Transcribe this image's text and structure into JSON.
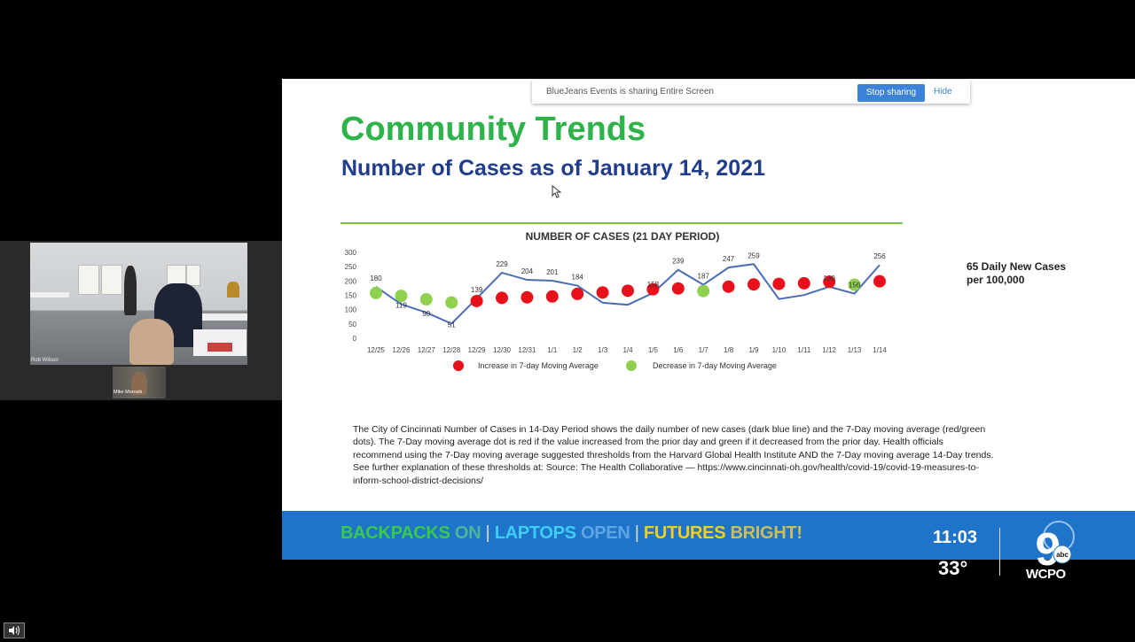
{
  "video": {
    "main_participant_name": "Rob Wilson",
    "thumb_participant_name": "Mike Moroski"
  },
  "share_bar": {
    "message": "BlueJeans Events is sharing Entire Screen",
    "stop_label": "Stop sharing",
    "hide_label": "Hide"
  },
  "slide": {
    "title": "Community Trends",
    "subtitle": "Number of Cases as of January 14, 2021",
    "side_note_line1": "65 Daily New Cases",
    "side_note_line2": "per 100,000",
    "description": "The City of Cincinnati Number of Cases in 14-Day Period shows the daily number of new cases (dark blue line) and the 7-Day moving average (red/green dots).  The 7-Day moving average dot is red if the value increased from the prior day and green if it decreased from the prior day.   Health officials recommend using the 7-Day moving average suggested thresholds from the Harvard Global Health Institute AND the 7-Day moving average 14-Day trends.    See further explanation of these thresholds at: Source: The Health Collaborative — https://www.cincinnati-oh.gov/health/covid-19/covid-19-measures-to-inform-school-district-decisions/"
  },
  "banner": {
    "w1": "BACKPACKS",
    "w2": "ON",
    "w3": "LAPTOPS",
    "w4": "OPEN",
    "w5": "FUTURES",
    "w6": "BRIGHT!",
    "sep": "|"
  },
  "tv": {
    "time": "11:03",
    "temp": "33°",
    "channel_number": "9",
    "network": "abc",
    "call_sign": "WCPO"
  },
  "colors": {
    "title_green": "#2db34a",
    "subtitle_blue": "#1f3d8c",
    "line_blue": "#4a6db3",
    "increase_red": "#e8111b",
    "decrease_green": "#8fd14f",
    "banner_blue": "#1e74c8"
  },
  "chart_data": {
    "type": "line",
    "title": "NUMBER OF CASES (21 DAY PERIOD)",
    "categories": [
      "12/25",
      "12/26",
      "12/27",
      "12/28",
      "12/29",
      "12/30",
      "12/31",
      "1/1",
      "1/2",
      "1/3",
      "1/4",
      "1/5",
      "1/6",
      "1/7",
      "1/8",
      "1/9",
      "1/10",
      "1/11",
      "1/12",
      "1/13",
      "1/14"
    ],
    "ylim": [
      0,
      300
    ],
    "yticks": [
      0,
      50,
      100,
      150,
      200,
      250,
      300
    ],
    "grid": false,
    "series": [
      {
        "values": [
          180,
          119,
          90,
          51,
          139,
          229,
          204,
          201,
          184,
          124,
          117,
          158,
          239,
          187,
          247,
          259,
          137,
          151,
          180,
          156,
          256
        ],
        "labels": [
          "180",
          "119",
          "90",
          "51",
          "139",
          "229",
          "204",
          "201",
          "184",
          "",
          "",
          "158",
          "239",
          "187",
          "247",
          "259",
          "",
          "",
          "180",
          "156",
          "256"
        ]
      },
      {
        "values": [
          158,
          148,
          136,
          125,
          130,
          141,
          143,
          146,
          155,
          160,
          166,
          171,
          174,
          165,
          180,
          188,
          190,
          192,
          197,
          187,
          199
        ],
        "direction": [
          "decrease",
          "decrease",
          "decrease",
          "decrease",
          "increase",
          "increase",
          "increase",
          "increase",
          "increase",
          "increase",
          "increase",
          "increase",
          "increase",
          "decrease",
          "increase",
          "increase",
          "increase",
          "increase",
          "increase",
          "decrease",
          "increase"
        ]
      }
    ],
    "legend": [
      {
        "label": "Increase in 7-day Moving Average",
        "color": "#e8111b"
      },
      {
        "label": "Decrease in 7-day Moving Average",
        "color": "#8fd14f"
      }
    ],
    "legend_position": "bottom"
  }
}
